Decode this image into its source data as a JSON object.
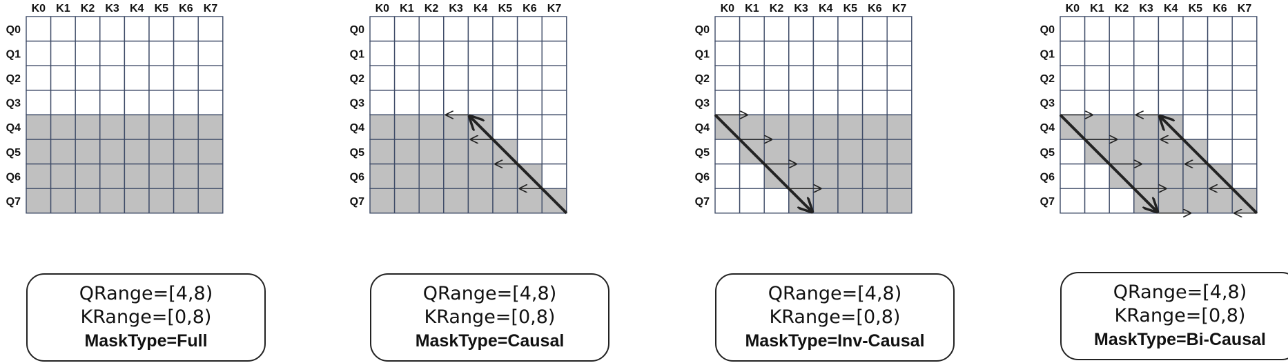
{
  "colors": {
    "grid_line": "#3d4a66",
    "mask_fill": "#c0c0c0",
    "arrow": "#222222",
    "text": "#111111"
  },
  "key_labels": [
    "K0",
    "K1",
    "K2",
    "K3",
    "K4",
    "K5",
    "K6",
    "K7"
  ],
  "query_labels": [
    "Q0",
    "Q1",
    "Q2",
    "Q3",
    "Q4",
    "Q5",
    "Q6",
    "Q7"
  ],
  "panels": [
    {
      "qrange": "QRange=[4,8)",
      "krange": "KRange=[0,8)",
      "masktype": "MaskType=Full",
      "masked_cells": {
        "rows": [
          4,
          8
        ],
        "shape": "full"
      }
    },
    {
      "qrange": "QRange=[4,8)",
      "krange": "KRange=[0,8)",
      "masktype": "MaskType=Causal",
      "masked_cells": {
        "rows": [
          4,
          8
        ],
        "shape": "causal"
      }
    },
    {
      "qrange": "QRange=[4,8)",
      "krange": "KRange=[0,8)",
      "masktype": "MaskType=Inv-Causal",
      "masked_cells": {
        "rows": [
          4,
          8
        ],
        "shape": "inv-causal"
      }
    },
    {
      "qrange": "QRange=[4,8)",
      "krange": "KRange=[0,8)",
      "masktype": "MaskType=Bi-Causal",
      "masked_cells": {
        "rows": [
          4,
          8
        ],
        "shape": "bi-causal"
      }
    }
  ]
}
